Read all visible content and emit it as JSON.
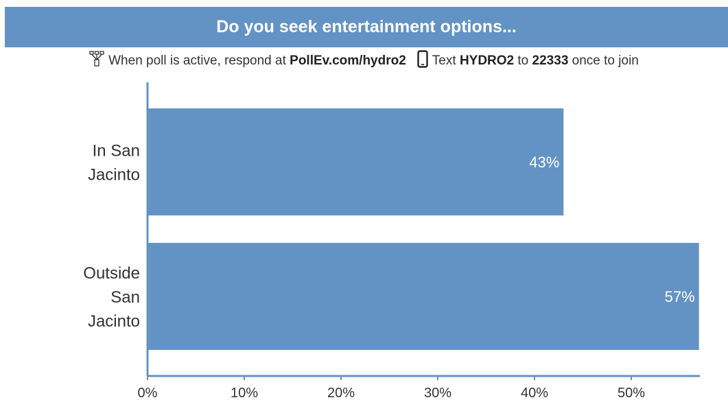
{
  "header": {
    "title": "Do you seek entertainment options..."
  },
  "instructions": {
    "web_prefix": "When poll is active, respond at",
    "web_url": "PollEv.com/hydro2",
    "text_prefix": "Text",
    "text_code": "HYDRO2",
    "text_to": "to",
    "text_number": "22333",
    "text_suffix": "once to join",
    "web_icon": "network-icon",
    "text_icon": "phone-icon"
  },
  "colors": {
    "bar": "#6393c4",
    "axis": "#6393c4"
  },
  "chart_data": {
    "type": "bar",
    "orientation": "horizontal",
    "categories": [
      "In San Jacinto",
      "Outside San Jacinto"
    ],
    "category_lines": [
      [
        "In San",
        "Jacinto"
      ],
      [
        "Outside",
        "San",
        "Jacinto"
      ]
    ],
    "values": [
      43,
      57
    ],
    "value_labels": [
      "43%",
      "57%"
    ],
    "x_ticks": [
      "0%",
      "10%",
      "20%",
      "30%",
      "40%",
      "50%"
    ],
    "xlim": [
      0,
      57
    ],
    "title": "Do you seek entertainment options..."
  }
}
